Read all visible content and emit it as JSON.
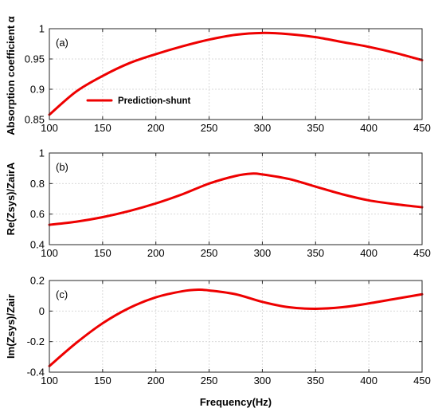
{
  "chart_data": [
    {
      "type": "line",
      "panel_label": "(a)",
      "ylabel": "Absorption coefficient α",
      "xlabel": "",
      "xlim": [
        100,
        450
      ],
      "ylim": [
        0.85,
        1.0
      ],
      "x_ticks": [
        "100",
        "150",
        "200",
        "250",
        "300",
        "350",
        "400",
        "450"
      ],
      "y_ticks": [
        "0.85",
        "0.9",
        "0.95",
        "1"
      ],
      "grid": true,
      "legend": {
        "placement": "bottom-left",
        "entries": [
          "Prediction-shunt"
        ]
      },
      "series": [
        {
          "name": "Prediction-shunt",
          "color": "#ee0000",
          "x": [
            100,
            125,
            150,
            175,
            200,
            225,
            250,
            275,
            300,
            325,
            350,
            375,
            400,
            425,
            450
          ],
          "y": [
            0.858,
            0.896,
            0.922,
            0.943,
            0.958,
            0.971,
            0.982,
            0.99,
            0.993,
            0.991,
            0.986,
            0.978,
            0.97,
            0.96,
            0.948
          ]
        }
      ]
    },
    {
      "type": "line",
      "panel_label": "(b)",
      "ylabel": "Re(Zsys)/ZairA",
      "xlabel": "",
      "xlim": [
        100,
        450
      ],
      "ylim": [
        0.4,
        1.0
      ],
      "x_ticks": [
        "100",
        "150",
        "200",
        "250",
        "300",
        "350",
        "400",
        "450"
      ],
      "y_ticks": [
        "0.4",
        "0.6",
        "0.8",
        "1"
      ],
      "grid": true,
      "series": [
        {
          "color": "#ee0000",
          "x": [
            100,
            125,
            150,
            175,
            200,
            225,
            250,
            275,
            290,
            300,
            325,
            350,
            375,
            400,
            425,
            450
          ],
          "y": [
            0.53,
            0.55,
            0.58,
            0.62,
            0.67,
            0.73,
            0.8,
            0.85,
            0.865,
            0.86,
            0.83,
            0.78,
            0.73,
            0.69,
            0.665,
            0.645
          ]
        }
      ]
    },
    {
      "type": "line",
      "panel_label": "(c)",
      "ylabel": "Im(Zsys)/Zair",
      "xlabel": "Frequency(Hz)",
      "xlim": [
        100,
        450
      ],
      "ylim": [
        -0.4,
        0.2
      ],
      "x_ticks": [
        "100",
        "150",
        "200",
        "250",
        "300",
        "350",
        "400",
        "450"
      ],
      "y_ticks": [
        "-0.4",
        "-0.2",
        "0",
        "0.2"
      ],
      "grid": true,
      "series": [
        {
          "color": "#ee0000",
          "x": [
            100,
            125,
            150,
            175,
            200,
            225,
            240,
            250,
            275,
            300,
            325,
            350,
            375,
            400,
            425,
            450
          ],
          "y": [
            -0.36,
            -0.21,
            -0.08,
            0.02,
            0.09,
            0.13,
            0.14,
            0.135,
            0.11,
            0.06,
            0.025,
            0.015,
            0.025,
            0.05,
            0.08,
            0.11
          ]
        }
      ]
    }
  ]
}
